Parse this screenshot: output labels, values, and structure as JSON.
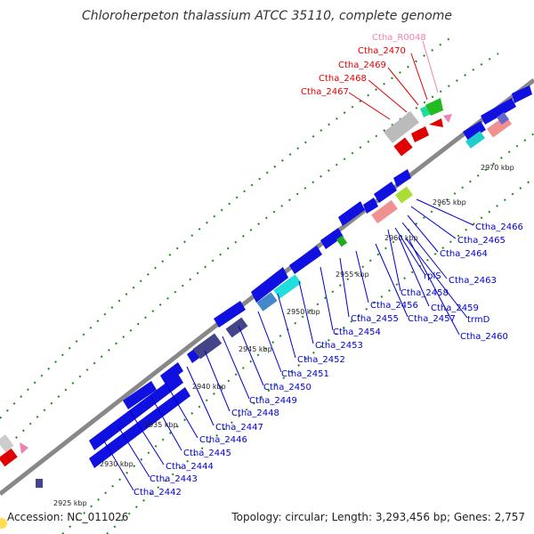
{
  "title": "Chloroherpeton thalassium ATCC 35110, complete genome",
  "accession": "Accession: NC_011026",
  "summary": "Topology: circular; Length: 3,293,456 bp; Genes: 2,757",
  "kbp_ticks": [
    "2925 kbp",
    "2930 kbp",
    "2935 kbp",
    "2940 kbp",
    "2945 kbp",
    "2950 kbp",
    "2955 kbp",
    "2960 kbp",
    "2965 kbp",
    "2970 kbp"
  ],
  "top_labels": [
    {
      "text": "Ctha_R0048",
      "color": "#f080b0"
    },
    {
      "text": "Ctha_2470",
      "color": "#e00000"
    },
    {
      "text": "Ctha_2469",
      "color": "#e00000"
    },
    {
      "text": "Ctha_2468",
      "color": "#e00000"
    },
    {
      "text": "Ctha_2467",
      "color": "#e00000"
    }
  ],
  "gene_labels": [
    "Ctha_2466",
    "Ctha_2465",
    "Ctha_2464",
    "Ctha_2463",
    "rplS",
    "Ctha_2458",
    "Ctha_2459",
    "trmD",
    "Ctha_2460",
    "Ctha_2456",
    "Ctha_2457",
    "Ctha_2455",
    "Ctha_2454",
    "Ctha_2453",
    "Ctha_2452",
    "Ctha_2451",
    "Ctha_2450",
    "Ctha_2449",
    "Ctha_2448",
    "Ctha_2447",
    "Ctha_2446",
    "Ctha_2445",
    "Ctha_2444",
    "Ctha_2443",
    "Ctha_2442"
  ],
  "colors": {
    "forward": "#1010e0",
    "reverse_red": "#e00000",
    "gc_dots": "#1a8a1a",
    "backbone": "#888888",
    "label_blue": "#0000cc"
  }
}
